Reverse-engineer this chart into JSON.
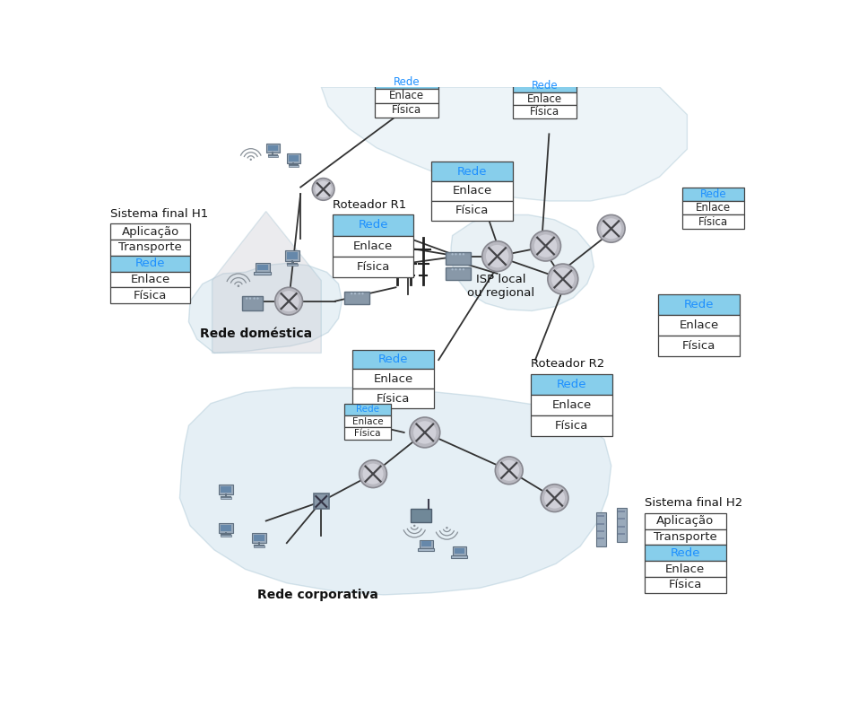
{
  "background_color": "#ffffff",
  "layer_box_full": {
    "layers": [
      "Aplicação",
      "Transporte",
      "Rede",
      "Enlace",
      "Física"
    ],
    "highlight_index": 2,
    "highlight_color": "#87CEEB",
    "highlight_text_color": "#1E90FF",
    "normal_bg": "#ffffff",
    "border_color": "#444444",
    "text_color": "#222222"
  },
  "layer_box_router": {
    "layers": [
      "Rede",
      "Enlace",
      "Física"
    ],
    "highlight_index": 0,
    "highlight_color": "#87CEEB",
    "highlight_text_color": "#1E90FF",
    "normal_bg": "#ffffff",
    "border_color": "#444444",
    "text_color": "#222222"
  },
  "cloud_color_home": "#C8DCE8",
  "cloud_color_isp": "#C8DCE8",
  "cloud_color_corp": "#C0D8E8",
  "cloud_color_upper": "#D0E4EE",
  "router_color": "#B8B8C0",
  "router_edge": "#888890",
  "switch_color": "#A0A8B0",
  "modem_color": "#8090A0",
  "labels": {
    "h1": "Sistema final H1",
    "h2": "Sistema final H2",
    "r1": "Roteador R1",
    "r2": "Roteador R2",
    "isp": "ISP local\nou regional",
    "home_net": "Rede doméstica",
    "corp_net": "Rede corporativa"
  }
}
